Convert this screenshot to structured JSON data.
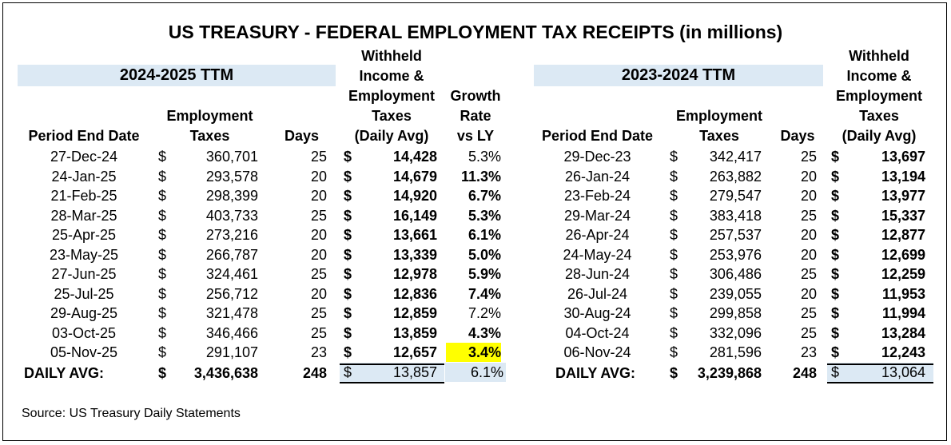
{
  "title": "US TREASURY - FEDERAL EMPLOYMENT TAX RECEIPTS (in millions)",
  "source": "Source: US Treasury Daily Statements",
  "colors": {
    "section_bg": "#dce9f4",
    "highlight": "#ffff00"
  },
  "left": {
    "section_title": "2024-2025 TTM",
    "headers": {
      "period": "Period End Date",
      "employment": [
        "Employment",
        "Taxes"
      ],
      "days": "Days",
      "withheld": [
        "Withheld",
        "Income &",
        "Employment",
        "Taxes",
        "(Daily Avg)"
      ],
      "growth": [
        "Growth",
        "Rate",
        "vs LY"
      ]
    },
    "rows": [
      {
        "date": "27-Dec-24",
        "cur": "$",
        "emp": "360,701",
        "days": "25",
        "cur2": "$",
        "avg": "14,428",
        "growth": "5.3%"
      },
      {
        "date": "24-Jan-25",
        "cur": "$",
        "emp": "293,578",
        "days": "20",
        "cur2": "$",
        "avg": "14,679",
        "growth": "11.3%"
      },
      {
        "date": "21-Feb-25",
        "cur": "$",
        "emp": "298,399",
        "days": "20",
        "cur2": "$",
        "avg": "14,920",
        "growth": "6.7%"
      },
      {
        "date": "28-Mar-25",
        "cur": "$",
        "emp": "403,733",
        "days": "25",
        "cur2": "$",
        "avg": "16,149",
        "growth": "5.3%"
      },
      {
        "date": "25-Apr-25",
        "cur": "$",
        "emp": "273,216",
        "days": "20",
        "cur2": "$",
        "avg": "13,661",
        "growth": "6.1%"
      },
      {
        "date": "23-May-25",
        "cur": "$",
        "emp": "266,787",
        "days": "20",
        "cur2": "$",
        "avg": "13,339",
        "growth": "5.0%"
      },
      {
        "date": "27-Jun-25",
        "cur": "$",
        "emp": "324,461",
        "days": "25",
        "cur2": "$",
        "avg": "12,978",
        "growth": "5.9%"
      },
      {
        "date": "25-Jul-25",
        "cur": "$",
        "emp": "256,712",
        "days": "20",
        "cur2": "$",
        "avg": "12,836",
        "growth": "7.4%"
      },
      {
        "date": "29-Aug-25",
        "cur": "$",
        "emp": "321,478",
        "days": "25",
        "cur2": "$",
        "avg": "12,859",
        "growth": "7.2%"
      },
      {
        "date": "03-Oct-25",
        "cur": "$",
        "emp": "346,466",
        "days": "25",
        "cur2": "$",
        "avg": "13,859",
        "growth": "4.3%"
      },
      {
        "date": "05-Nov-25",
        "cur": "$",
        "emp": "291,107",
        "days": "23",
        "cur2": "$",
        "avg": "12,657",
        "growth": "3.4%",
        "highlight": true
      }
    ],
    "growth_bold": [
      false,
      true,
      true,
      true,
      true,
      true,
      true,
      true,
      false,
      true,
      true
    ],
    "total": {
      "label": "DAILY AVG:",
      "cur": "$",
      "emp": "3,436,638",
      "days": "248",
      "cur2": "$",
      "avg": "13,857",
      "growth": "6.1%"
    }
  },
  "right": {
    "section_title": "2023-2024 TTM",
    "headers": {
      "period": "Period End Date",
      "employment": [
        "Employment",
        "Taxes"
      ],
      "days": "Days",
      "withheld": [
        "Withheld",
        "Income &",
        "Employment",
        "Taxes",
        "(Daily Avg)"
      ]
    },
    "rows": [
      {
        "date": "29-Dec-23",
        "cur": "$",
        "emp": "342,417",
        "days": "25",
        "cur2": "$",
        "avg": "13,697"
      },
      {
        "date": "26-Jan-24",
        "cur": "$",
        "emp": "263,882",
        "days": "20",
        "cur2": "$",
        "avg": "13,194"
      },
      {
        "date": "23-Feb-24",
        "cur": "$",
        "emp": "279,547",
        "days": "20",
        "cur2": "$",
        "avg": "13,977"
      },
      {
        "date": "29-Mar-24",
        "cur": "$",
        "emp": "383,418",
        "days": "25",
        "cur2": "$",
        "avg": "15,337"
      },
      {
        "date": "26-Apr-24",
        "cur": "$",
        "emp": "257,537",
        "days": "20",
        "cur2": "$",
        "avg": "12,877"
      },
      {
        "date": "24-May-24",
        "cur": "$",
        "emp": "253,976",
        "days": "20",
        "cur2": "$",
        "avg": "12,699"
      },
      {
        "date": "28-Jun-24",
        "cur": "$",
        "emp": "306,486",
        "days": "25",
        "cur2": "$",
        "avg": "12,259"
      },
      {
        "date": "26-Jul-24",
        "cur": "$",
        "emp": "239,055",
        "days": "20",
        "cur2": "$",
        "avg": "11,953"
      },
      {
        "date": "30-Aug-24",
        "cur": "$",
        "emp": "299,858",
        "days": "25",
        "cur2": "$",
        "avg": "11,994"
      },
      {
        "date": "04-Oct-24",
        "cur": "$",
        "emp": "332,096",
        "days": "25",
        "cur2": "$",
        "avg": "13,284"
      },
      {
        "date": "06-Nov-24",
        "cur": "$",
        "emp": "281,596",
        "days": "23",
        "cur2": "$",
        "avg": "12,243"
      }
    ],
    "total": {
      "label": "DAILY AVG:",
      "cur": "$",
      "emp": "3,239,868",
      "days": "248",
      "cur2": "$",
      "avg": "13,064"
    }
  }
}
